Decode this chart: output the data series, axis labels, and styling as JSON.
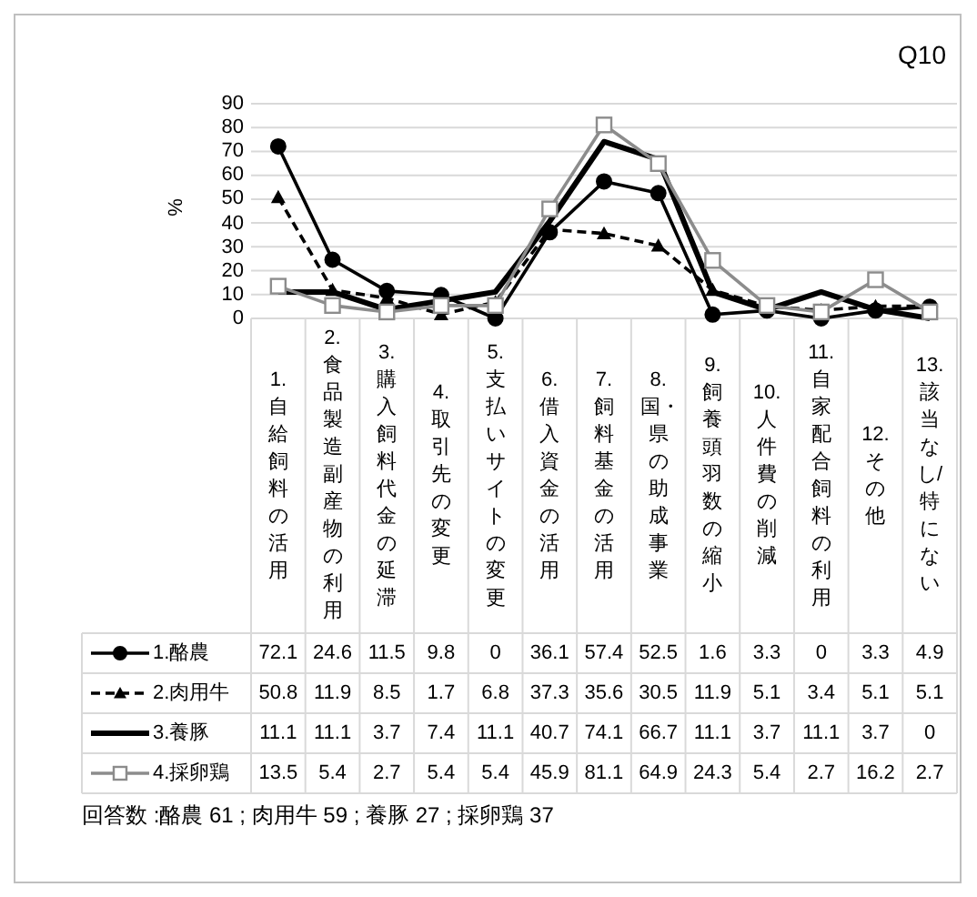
{
  "chart_data": {
    "type": "line",
    "title": "Q10",
    "ylabel": "%",
    "categories": [
      "1.自給飼料の活用",
      "2.食品製造副産物の利用",
      "3.購入飼料代金の延滞",
      "4.取引先の変更",
      "5.支払いサイトの変更",
      "6.借入資金の活用",
      "7.飼料基金の活用",
      "8.国・県の助成事業",
      "9.飼養頭羽数の縮小",
      "10.人件費の削減",
      "11.自家配合飼料の利用",
      "12.その他",
      "13.該当なし/特にない"
    ],
    "series": [
      {
        "name": "1.酪農",
        "color": "#000000",
        "marker": "circle",
        "line_style": "solid",
        "values": [
          72.1,
          24.6,
          11.5,
          9.8,
          0,
          36.1,
          57.4,
          52.5,
          1.6,
          3.3,
          0,
          3.3,
          4.9
        ]
      },
      {
        "name": "2.肉用牛",
        "color": "#000000",
        "marker": "triangle",
        "line_style": "dashed",
        "values": [
          50.8,
          11.9,
          8.5,
          1.7,
          6.8,
          37.3,
          35.6,
          30.5,
          11.9,
          5.1,
          3.4,
          5.1,
          5.1
        ]
      },
      {
        "name": "3.養豚",
        "color": "#000000",
        "marker": "none",
        "line_style": "solid",
        "values": [
          11.1,
          11.1,
          3.7,
          7.4,
          11.1,
          40.7,
          74.1,
          66.7,
          11.1,
          3.7,
          11.1,
          3.7,
          0
        ]
      },
      {
        "name": "4.採卵鶏",
        "color": "#8c8c8c",
        "marker": "square",
        "line_style": "solid",
        "values": [
          13.5,
          5.4,
          2.7,
          5.4,
          5.4,
          45.9,
          81.1,
          64.9,
          24.3,
          5.4,
          2.7,
          16.2,
          2.7
        ]
      }
    ],
    "ylim": [
      0,
      90
    ],
    "yticks": [
      0,
      10,
      20,
      30,
      40,
      50,
      60,
      70,
      80,
      90
    ],
    "grid": "y",
    "legend": "bottom",
    "data_labels": true,
    "annotations": [
      "回答数 :酪農 61 ; 肉用牛 59 ; 養豚 27 ; 採卵鶏 37"
    ]
  }
}
